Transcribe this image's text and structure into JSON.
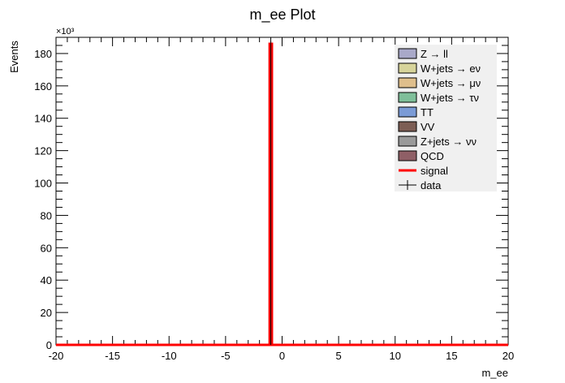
{
  "chart_data": {
    "type": "histogram",
    "title": "m_ee Plot",
    "xlabel": "m_ee",
    "ylabel": "Events",
    "y_exponent_label": "×10³",
    "xlim": [
      -20,
      20
    ],
    "ylim": [
      0,
      190000
    ],
    "x_ticks": [
      -20,
      -15,
      -10,
      -5,
      0,
      5,
      10,
      15,
      20
    ],
    "y_ticks": [
      0,
      20,
      40,
      60,
      80,
      100,
      120,
      140,
      160,
      180
    ],
    "y_tick_scale": 1000,
    "grid": false,
    "legend_position": "top-right",
    "legend": [
      {
        "label": "Z → ll",
        "kind": "box",
        "color": "#a9a9c9"
      },
      {
        "label": "W+jets → eν",
        "kind": "box",
        "color": "#d7d49b"
      },
      {
        "label": "W+jets → μν",
        "kind": "box",
        "color": "#dfbf8c"
      },
      {
        "label": "W+jets → τν",
        "kind": "box",
        "color": "#7fbf9a"
      },
      {
        "label": "TT",
        "kind": "box",
        "color": "#7b9bd6"
      },
      {
        "label": "VV",
        "kind": "box",
        "color": "#7d5e55"
      },
      {
        "label": "Z+jets → νν",
        "kind": "box",
        "color": "#9a9a9a"
      },
      {
        "label": "QCD",
        "kind": "box",
        "color": "#8f5f66"
      },
      {
        "label": "signal",
        "kind": "line",
        "color": "#ff0000"
      },
      {
        "label": "data",
        "kind": "marker",
        "color": "#000000"
      }
    ],
    "series": [
      {
        "name": "signal",
        "color": "#ff0000",
        "bins": [
          {
            "x0": -20,
            "x1": -1.1,
            "value": 0
          },
          {
            "x0": -1.1,
            "x1": -0.9,
            "value": 186000
          },
          {
            "x0": -0.9,
            "x1": 20,
            "value": 0
          }
        ]
      },
      {
        "name": "data",
        "color": "#000000",
        "points": [
          {
            "x": -1.0,
            "y": 186000
          }
        ]
      }
    ]
  }
}
